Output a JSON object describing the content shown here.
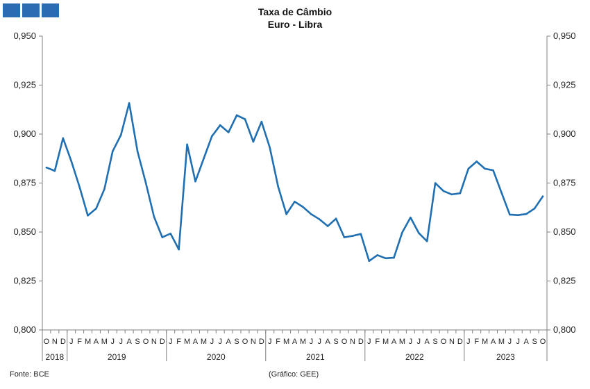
{
  "header": {
    "title": "Taxa de Câmbio",
    "subtitle": "Euro - Libra"
  },
  "footer": {
    "source": "Fonte: BCE",
    "credit": "(Gráfico: GEE)"
  },
  "colors": {
    "line": "#1f6fb2",
    "axis": "#808080",
    "logo": "#2a6bb4"
  },
  "chart_data": {
    "type": "line",
    "title": "Taxa de Câmbio",
    "subtitle": "Euro - Libra",
    "xlabel": "",
    "ylabel": "",
    "ylim": [
      0.8,
      0.95
    ],
    "yticks": [
      "0,950",
      "0,925",
      "0,900",
      "0,875",
      "0,850",
      "0,825",
      "0,800"
    ],
    "ytick_values": [
      0.95,
      0.925,
      0.9,
      0.875,
      0.85,
      0.825,
      0.8
    ],
    "grid": false,
    "legend": "none",
    "x_months": [
      "O",
      "N",
      "D",
      "J",
      "F",
      "M",
      "A",
      "M",
      "J",
      "J",
      "A",
      "S",
      "O",
      "N",
      "D",
      "J",
      "F",
      "M",
      "A",
      "M",
      "J",
      "J",
      "A",
      "S",
      "O",
      "N",
      "D",
      "J",
      "F",
      "M",
      "A",
      "M",
      "J",
      "J",
      "A",
      "S",
      "O",
      "N",
      "D",
      "J",
      "F",
      "M",
      "A",
      "M",
      "J",
      "J",
      "A",
      "S",
      "O",
      "N",
      "D",
      "J",
      "F",
      "M",
      "A",
      "M",
      "J",
      "J",
      "A",
      "S",
      "O"
    ],
    "years": [
      {
        "label": "2018",
        "start": 0,
        "end": 2
      },
      {
        "label": "2019",
        "start": 3,
        "end": 14
      },
      {
        "label": "2020",
        "start": 15,
        "end": 26
      },
      {
        "label": "2021",
        "start": 27,
        "end": 38
      },
      {
        "label": "2022",
        "start": 39,
        "end": 50
      },
      {
        "label": "2023",
        "start": 51,
        "end": 60
      }
    ],
    "series": [
      {
        "values": [
          0.8829,
          0.8812,
          0.8979,
          0.8862,
          0.873,
          0.8584,
          0.862,
          0.8719,
          0.8912,
          0.8995,
          0.9158,
          0.8912,
          0.8752,
          0.8578,
          0.8473,
          0.8492,
          0.8411,
          0.8947,
          0.8758,
          0.8874,
          0.8989,
          0.9045,
          0.9009,
          0.9096,
          0.9076,
          0.8961,
          0.9063,
          0.8931,
          0.8732,
          0.8591,
          0.8655,
          0.8628,
          0.8591,
          0.8565,
          0.853,
          0.8568,
          0.8473,
          0.848,
          0.849,
          0.8352,
          0.8382,
          0.8366,
          0.8369,
          0.8497,
          0.8574,
          0.8495,
          0.8453,
          0.875,
          0.8709,
          0.8692,
          0.8698,
          0.8823,
          0.886,
          0.8823,
          0.8815,
          0.8701,
          0.8589,
          0.8586,
          0.8592,
          0.862,
          0.8682
        ]
      }
    ]
  }
}
